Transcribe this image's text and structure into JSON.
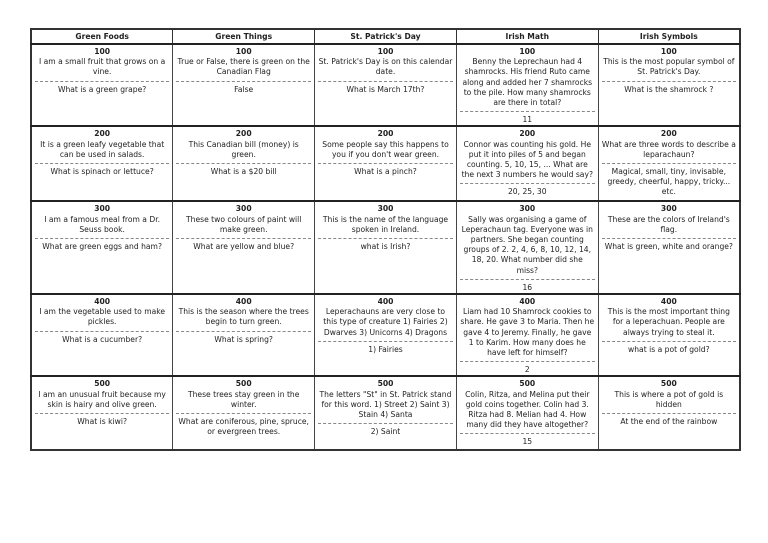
{
  "categories": [
    "Green Foods",
    "Green Things",
    "St. Patrick's Day",
    "Irish Math",
    "Irish Symbols"
  ],
  "rows": [
    {
      "value": "100",
      "cells": [
        {
          "q": "I am a small fruit that grows on a vine.",
          "a": "What is a green grape?"
        },
        {
          "q": "True or False, there is green on the Canadian Flag",
          "a": "False"
        },
        {
          "q": "St. Patrick's Day is on this calendar date.",
          "a": "What is March 17th?"
        },
        {
          "q": "Benny the Leprechaun had 4 shamrocks. His friend Ruto came along and added her 7 shamrocks to the pile. How many shamrocks are there in total?",
          "a": "11"
        },
        {
          "q": "This is the most popular symbol of St. Patrick's Day.",
          "a": "What is the shamrock ?"
        }
      ]
    },
    {
      "value": "200",
      "cells": [
        {
          "q": "It is a green leafy vegetable that can be used in salads.",
          "a": "What is spinach or lettuce?"
        },
        {
          "q": "This Canadian bill (money) is green.",
          "a": "What is a $20 bill"
        },
        {
          "q": "Some people say this happens to you if you don't wear green.",
          "a": "What is a pinch?"
        },
        {
          "q": "Connor was counting his gold. He put it into piles of 5 and began counting. 5, 10, 15, ... What are the next 3 numbers he would say?",
          "a": "20, 25, 30"
        },
        {
          "q": "What are three words to describe a leparachaun?",
          "a": "Magical, small, tiny, invisable, greedy, cheerful, happy, tricky... etc."
        }
      ]
    },
    {
      "value": "300",
      "cells": [
        {
          "q": "I am a famous meal from a Dr. Seuss book.",
          "a": "What are green eggs and ham?"
        },
        {
          "q": "These two colours of paint will make green.",
          "a": "What are yellow and blue?"
        },
        {
          "q": "This is the name of the language spoken in Ireland.",
          "a": "what is Irish?"
        },
        {
          "q": "Sally was organising a game of Leperachaun tag. Everyone was in partners. She began counting groups of 2. 2, 4, 6, 8, 10, 12, 14, 18, 20. What number did she miss?",
          "a": "16"
        },
        {
          "q": "These are the colors of Ireland's flag.",
          "a": "What is green, white and orange?"
        }
      ]
    },
    {
      "value": "400",
      "cells": [
        {
          "q": "I am the vegetable used to make pickles.",
          "a": "What is a cucumber?"
        },
        {
          "q": "This is the season where the trees begin to turn green.",
          "a": "What is spring?"
        },
        {
          "q": "Leperachauns are very close to this type of creature 1) Fairies 2) Dwarves 3) Unicorns 4) Dragons",
          "a": "1) Fairies"
        },
        {
          "q": "Liam had 10 Shamrock cookies to share. He gave 3 to Maria. Then he gave 4 to Jeremy. Finally, he gave 1 to Karim. How many does he have left for himself?",
          "a": "2"
        },
        {
          "q": "This is the most important thing for a leperachuan. People are always trying to steal it.",
          "a": "what is a pot of gold?"
        }
      ]
    },
    {
      "value": "500",
      "cells": [
        {
          "q": "I am an unusual fruit because my skin is hairy and olive green.",
          "a": "What is kiwi?"
        },
        {
          "q": "These trees stay green in the winter.",
          "a": "What are coniferous, pine, spruce, or evergreen trees."
        },
        {
          "q": "The letters \"St\" in St. Patrick stand for this word. 1) Street 2) Saint 3) Stain 4) Santa",
          "a": "2) Saint"
        },
        {
          "q": "Colin, Ritza, and Melina put their gold coins together. Colin had 3. Ritza had 8. Melian had 4. How many did they have altogether?",
          "a": "15"
        },
        {
          "q": "This is where a pot of gold is hidden",
          "a": "At the end of the rainbow"
        }
      ]
    }
  ]
}
